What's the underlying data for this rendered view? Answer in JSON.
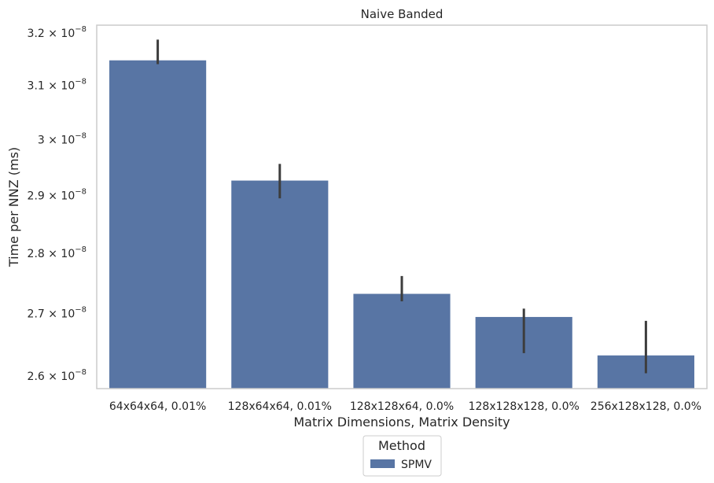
{
  "chart_data": {
    "type": "bar",
    "title": "Naive Banded",
    "xlabel": "Matrix Dimensions, Matrix Density",
    "ylabel": "Time per NNZ (ms)",
    "yscale": "log",
    "ylim": [
      2.58e-08,
      3.215e-08
    ],
    "grid": false,
    "categories": [
      "64x64x64, 0.01%",
      "128x64x64, 0.01%",
      "128x128x64, 0.0%",
      "128x128x128, 0.0%",
      "256x128x128, 0.0%"
    ],
    "series": [
      {
        "name": "SPMV",
        "color": "#5875a4",
        "values": [
          3.148e-08,
          2.927e-08,
          2.733e-08,
          2.695e-08,
          2.633e-08
        ],
        "error_low": [
          3.14e-08,
          2.895e-08,
          2.72e-08,
          2.636e-08,
          2.604e-08
        ],
        "error_high": [
          3.187e-08,
          2.956e-08,
          2.762e-08,
          2.708e-08,
          2.688e-08
        ]
      }
    ],
    "yticks": [
      {
        "value": 2.6e-08,
        "mantissa": "2.6",
        "base": "10",
        "exp": "−8"
      },
      {
        "value": 2.7e-08,
        "mantissa": "2.7",
        "base": "10",
        "exp": "−8"
      },
      {
        "value": 2.8e-08,
        "mantissa": "2.8",
        "base": "10",
        "exp": "−8"
      },
      {
        "value": 2.9e-08,
        "mantissa": "2.9",
        "base": "10",
        "exp": "−8"
      },
      {
        "value": 3e-08,
        "mantissa": "3",
        "base": "10",
        "exp": "−8"
      },
      {
        "value": 3.1e-08,
        "mantissa": "3.1",
        "base": "10",
        "exp": "−8"
      },
      {
        "value": 3.2e-08,
        "mantissa": "3.2",
        "base": "10",
        "exp": "−8"
      }
    ],
    "legend": {
      "title": "Method",
      "placement": "below-center",
      "entries": [
        "SPMV"
      ]
    }
  }
}
